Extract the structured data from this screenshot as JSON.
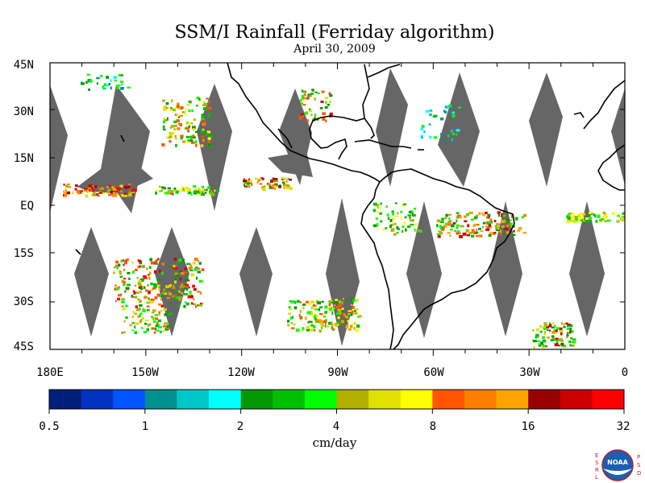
{
  "title": "SSM/I Rainfall (Ferriday algorithm)",
  "subtitle": "April 30, 2009",
  "lat_labels": [
    "45N",
    "30N",
    "15N",
    "EQ",
    "15S",
    "30S",
    "45S"
  ],
  "lon_labels": [
    "180E",
    "150W",
    "120W",
    "90W",
    "60W",
    "30W",
    "0"
  ],
  "colorbar": {
    "tick_labels": [
      "0.5",
      "1",
      "2",
      "4",
      "8",
      "16",
      "32"
    ],
    "units": "cm/day",
    "colors": [
      "#001e7c",
      "#0033c0",
      "#0055ff",
      "#009090",
      "#00c8c8",
      "#00ffff",
      "#009900",
      "#00c000",
      "#00ff00",
      "#b0b000",
      "#e0e000",
      "#ffff00",
      "#ff5500",
      "#ff7f00",
      "#ffa500",
      "#990000",
      "#cc0000",
      "#ff0000"
    ]
  },
  "logo": {
    "left_letters": [
      "E",
      "S",
      "R",
      "L"
    ],
    "right_letters": [
      "P",
      "S",
      "D"
    ],
    "center": "NOAA"
  }
}
